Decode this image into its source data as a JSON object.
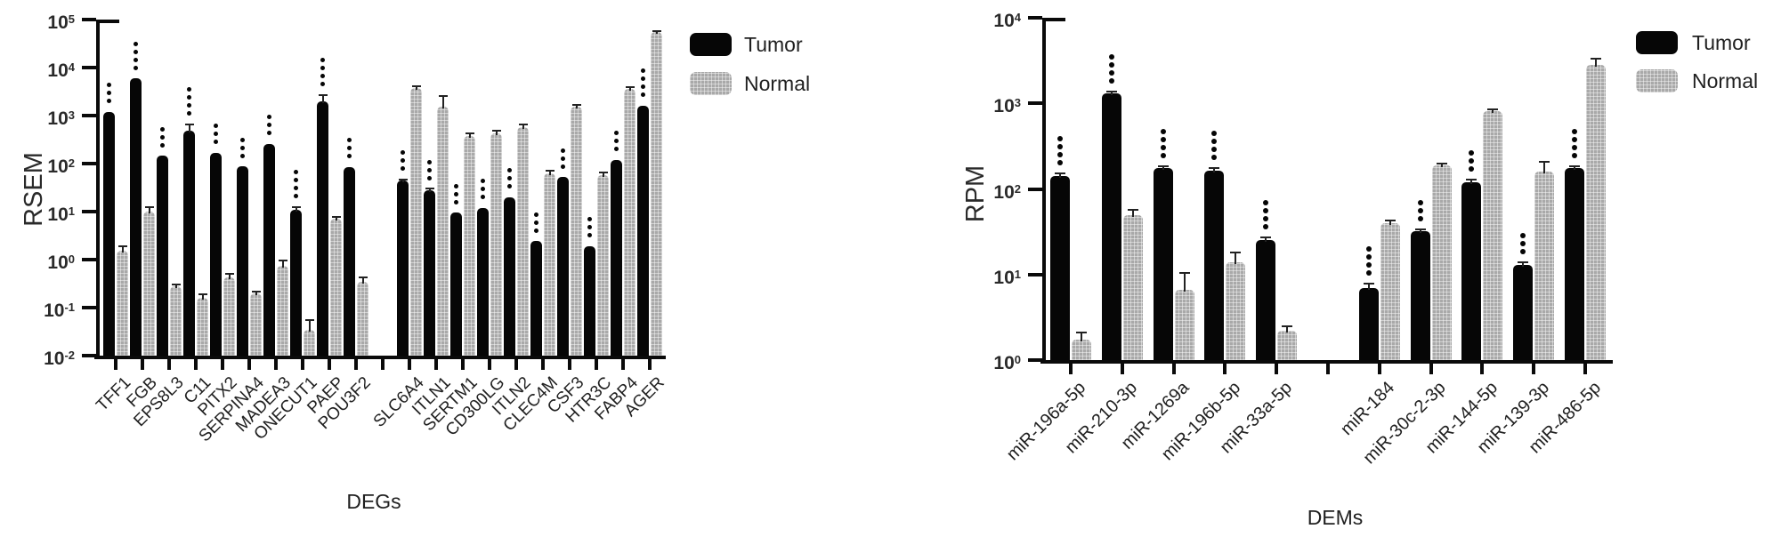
{
  "legend": {
    "tumor_label": "Tumor",
    "normal_label": "Normal",
    "tumor_color": "#060606",
    "normal_color": "#a9a9a9"
  },
  "chart_data": [
    {
      "type": "bar",
      "title": "",
      "ylabel": "RSEM",
      "xlabel": "DEGs",
      "yscale": "log",
      "ylim": [
        0.01,
        100000
      ],
      "y_tick_exponents": [
        5,
        4,
        3,
        2,
        1,
        0,
        -1,
        -2
      ],
      "legend_position": "top-right",
      "grid": false,
      "gap_after_index": 9,
      "categories": [
        "TFF1",
        "FGB",
        "EPS8L3",
        "C11",
        "PITX2",
        "SERPINA4",
        "MADEA3",
        "ONECUT1",
        "PAEP",
        "POU3F2",
        "SLC6A4",
        "ITLN1",
        "SERTM1",
        "CD300LG",
        "ITLN2",
        "CLEC4M",
        "CSF3",
        "HTR3C",
        "FABP4",
        "AGER"
      ],
      "series": [
        {
          "name": "Tumor",
          "values": [
            1200,
            5900,
            145,
            490,
            170,
            87,
            260,
            11,
            2000,
            85,
            45,
            28,
            9.5,
            12,
            20,
            2.4,
            52,
            1.9,
            120,
            1600
          ],
          "err_hi": [
            1200,
            5900,
            145,
            660,
            170,
            87,
            260,
            12.5,
            2700,
            85,
            47,
            30,
            9.5,
            12,
            20,
            2.4,
            52,
            1.9,
            120,
            1600
          ]
        },
        {
          "name": "Normal",
          "values": [
            1.5,
            10,
            0.28,
            0.16,
            0.43,
            0.2,
            0.74,
            0.034,
            7,
            0.35,
            3800,
            1500,
            380,
            430,
            580,
            62,
            1500,
            57,
            3600,
            54000
          ],
          "err_hi": [
            1.9,
            12.5,
            0.3,
            0.19,
            0.5,
            0.22,
            0.95,
            0.055,
            7.8,
            0.42,
            4100,
            2600,
            430,
            480,
            650,
            70,
            1700,
            64,
            3900,
            58000
          ]
        }
      ],
      "significance": {
        "marker": "*",
        "applies_to_series": "Tumor",
        "counts": [
          3,
          4,
          3,
          4,
          3,
          3,
          3,
          4,
          4,
          3,
          3,
          3,
          3,
          3,
          3,
          3,
          3,
          3,
          3,
          4
        ]
      }
    },
    {
      "type": "bar",
      "title": "",
      "ylabel": "RPM",
      "xlabel": "DEMs",
      "yscale": "log",
      "ylim": [
        1,
        10000
      ],
      "y_tick_exponents": [
        4,
        3,
        2,
        1,
        0
      ],
      "legend_position": "top-right",
      "grid": false,
      "gap_after_index": 4,
      "categories": [
        "miR-196a-5p",
        "miR-210-3p",
        "miR-1269a",
        "miR-196b-5p",
        "miR-33a-5p",
        "miR-184",
        "miR-30c-2-3p",
        "miR-144-5p",
        "miR-139-3p",
        "miR-486-5p"
      ],
      "series": [
        {
          "name": "Tumor",
          "values": [
            140,
            1300,
            175,
            165,
            25,
            7,
            32,
            120,
            13,
            175
          ],
          "err_hi": [
            152,
            1380,
            185,
            176,
            27,
            7.9,
            34,
            128,
            14,
            185
          ]
        },
        {
          "name": "Normal",
          "values": [
            1.75,
            49,
            6.6,
            14,
            2.2,
            40,
            190,
            820,
            160,
            2800
          ],
          "err_hi": [
            2.1,
            57,
            10.5,
            18,
            2.5,
            43,
            200,
            860,
            205,
            3300
          ]
        }
      ],
      "significance": {
        "marker": "*",
        "applies_to_series": "Tumor",
        "counts": [
          4,
          4,
          4,
          4,
          4,
          4,
          3,
          3,
          3,
          4
        ]
      }
    }
  ]
}
